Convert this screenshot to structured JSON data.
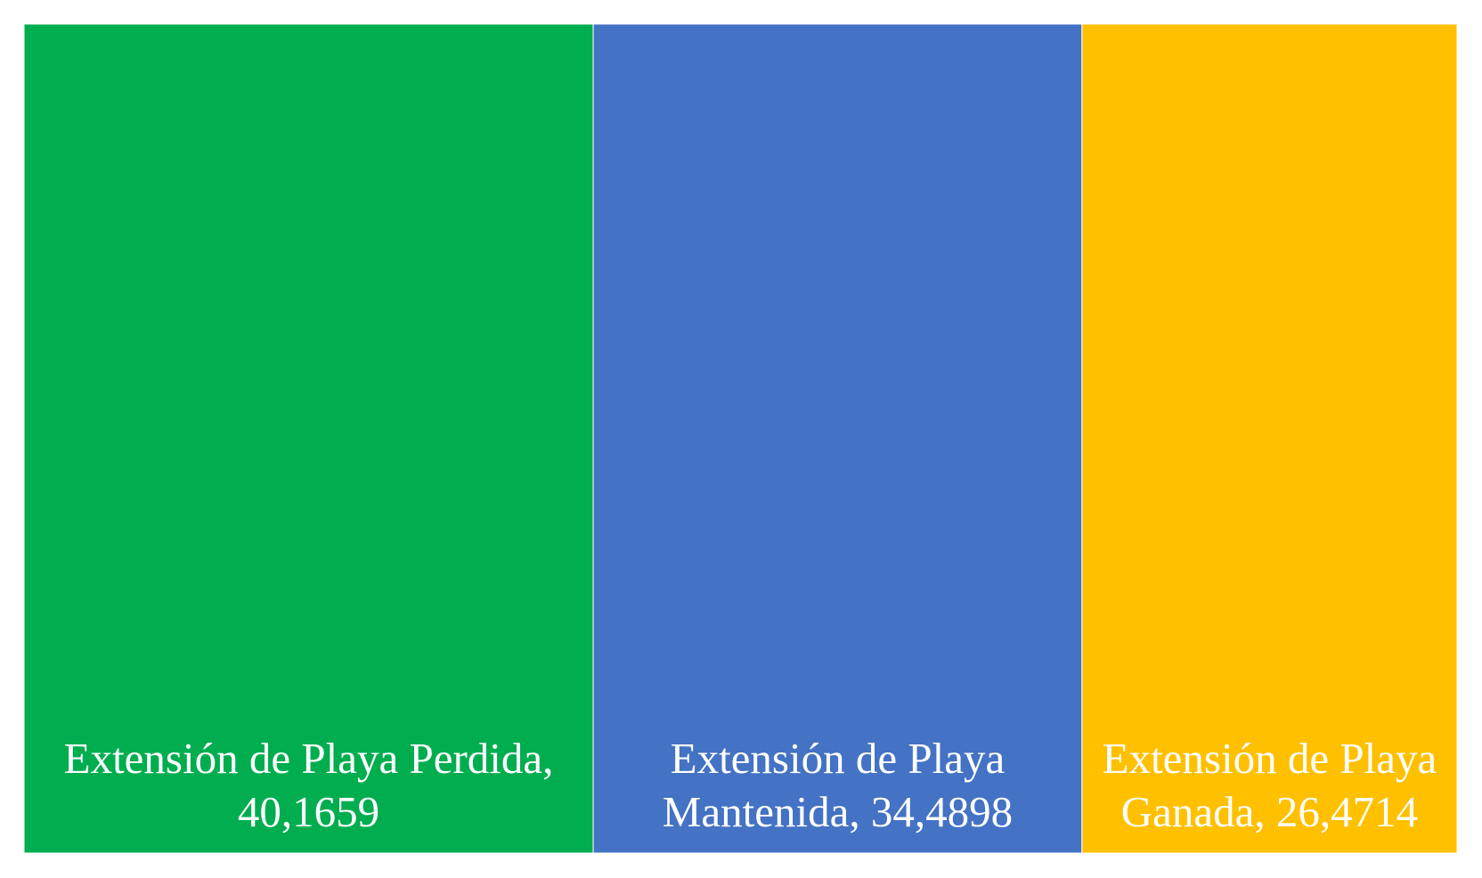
{
  "chart_data": {
    "type": "treemap",
    "values": [
      40.1659,
      34.4898,
      26.4714
    ],
    "value_labels": [
      "Extensión de Playa Perdida, 40,1659",
      "Extensión de Playa Mantenida, 34,4898",
      "Extensión de Playa Ganada, 26,4714"
    ],
    "colors": [
      "#00ad4f",
      "#4472c4",
      "#ffc000"
    ]
  }
}
